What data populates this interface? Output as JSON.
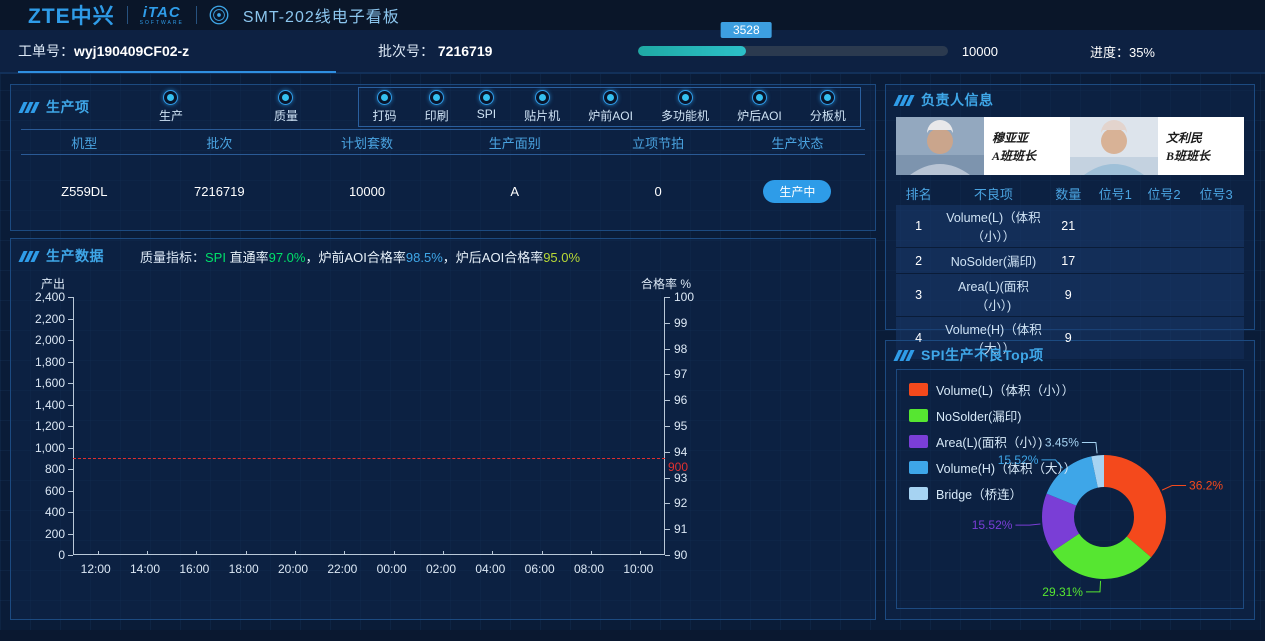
{
  "header": {
    "brand_zte": "ZTE中兴",
    "brand_itac": "iTAC",
    "brand_itac_sub": "SOFTWARE",
    "title": "SMT-202线电子看板"
  },
  "info_bar": {
    "work_order_label": "工单号：",
    "work_order_value": "wyj190409CF02-z",
    "batch_label": "批次号：",
    "batch_value": "7216719",
    "progress_current": "3528",
    "progress_total": "10000",
    "progress_label": "进度：35%",
    "progress_percent": 35
  },
  "production_items": {
    "title": "生产项",
    "solo_radios": [
      "生产",
      "质量"
    ],
    "station_radios": [
      "打码",
      "印刷",
      "SPI",
      "贴片机",
      "炉前AOI",
      "多功能机",
      "炉后AOI",
      "分板机"
    ],
    "table_headers": [
      "机型",
      "批次",
      "计划套数",
      "生产面别",
      "立项节拍",
      "生产状态"
    ],
    "table_row": [
      "Z559DL",
      "7216719",
      "10000",
      "A",
      "0"
    ],
    "status": "生产中"
  },
  "production_data": {
    "title": "生产数据",
    "quality_label": "质量指标：",
    "indicator_segments": [
      {
        "text": "SPI ",
        "color": "#00e06a"
      },
      {
        "text": "直通率",
        "color": "#e8f2fa"
      },
      {
        "text": "97.0%",
        "color": "#00e06a"
      },
      {
        "text": "，",
        "color": "#e8f2fa"
      },
      {
        "text": "炉前AOI合格率",
        "color": "#e8f2fa"
      },
      {
        "text": "98.5%",
        "color": "#3fa7e8"
      },
      {
        "text": "，",
        "color": "#e8f2fa"
      },
      {
        "text": "炉后AOI合格率",
        "color": "#e8f2fa"
      },
      {
        "text": "95.0%",
        "color": "#b8d936"
      }
    ]
  },
  "supervisors": {
    "title": "负责人信息",
    "people": [
      {
        "name": "穆亚亚",
        "role": "A班班长"
      },
      {
        "name": "文利民",
        "role": "B班班长"
      }
    ]
  },
  "defect_table": {
    "headers": [
      "排名",
      "不良项",
      "数量",
      "位号1",
      "位号2",
      "位号3"
    ],
    "rows": [
      [
        "1",
        "Volume(L)（体积（小））",
        "21",
        "",
        "",
        ""
      ],
      [
        "2",
        "NoSolder(漏印)",
        "17",
        "",
        "",
        ""
      ],
      [
        "3",
        "Area(L)(面积（小）)",
        "9",
        "",
        "",
        ""
      ],
      [
        "4",
        "Volume(H)（体积（大））",
        "9",
        "",
        "",
        ""
      ]
    ]
  },
  "spi_top": {
    "title": "SPI生产不良Top项"
  },
  "chart_data": [
    {
      "type": "line",
      "title": "生产数据",
      "ylabel_left": "产出",
      "ylabel_right": "合格率 %",
      "left_axis": {
        "min": 0,
        "max": 2400,
        "step": 200
      },
      "right_axis": {
        "min": 90,
        "max": 100,
        "step": 1
      },
      "x_ticks": [
        "12:00",
        "14:00",
        "16:00",
        "18:00",
        "20:00",
        "22:00",
        "00:00",
        "02:00",
        "04:00",
        "06:00",
        "08:00",
        "10:00"
      ],
      "series": [],
      "target_line": {
        "value": 900,
        "label": "900",
        "color": "#e03030"
      },
      "grid": false,
      "legend_position": "none"
    },
    {
      "type": "pie",
      "donut": true,
      "title": "SPI生产不良Top项",
      "labels": [
        "Volume(L)（体积（小））",
        "NoSolder(漏印)",
        "Area(L)(面积（小）)",
        "Volume(H)（体积（大））",
        "Bridge（桥连）"
      ],
      "values": [
        36.2,
        29.31,
        15.52,
        15.52,
        3.45
      ],
      "display_labels": [
        "36.2%",
        "29.31%",
        "15.52%",
        "15.52%",
        "3.45%"
      ],
      "colors": [
        "#f4491c",
        "#56e631",
        "#7a3ed6",
        "#3ea6e8",
        "#a6d3f2"
      ],
      "legend_position": "top-left"
    }
  ]
}
